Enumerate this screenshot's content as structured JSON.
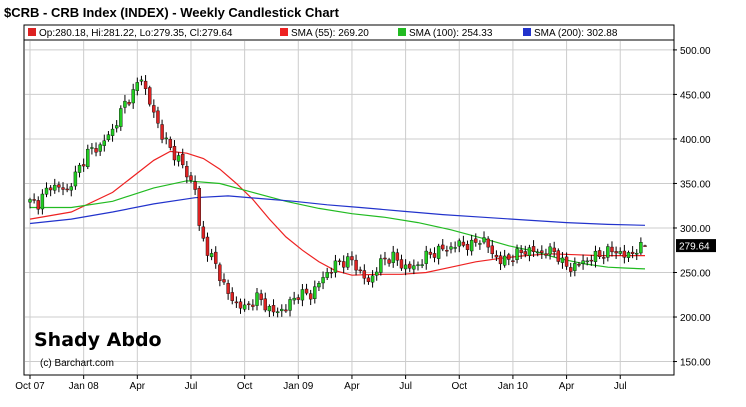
{
  "header": {
    "title": "$CRB - CRB Index (INDEX) - Weekly Candlestick Chart"
  },
  "legend": {
    "ohlc": "Op:280.18, Hi:281.22, Lo:279.35, Cl:279.64",
    "sma55": "SMA (55): 269.20",
    "sma100": "SMA (100): 254.33",
    "sma200": "SMA (200): 302.88"
  },
  "colors": {
    "up": "#22cc22",
    "down": "#dd2222",
    "wick": "#000000",
    "sma55": "#ee2222",
    "sma100": "#22bb22",
    "sma200": "#2233cc",
    "grid": "#cccccc",
    "last_bg": "#000000"
  },
  "watermark": "Shady Abdo",
  "copyright": "(c) Barchart.com",
  "last_value_label": "279.64",
  "chart_data": {
    "type": "candlestick",
    "title": "$CRB - CRB Index (INDEX) - Weekly Candlestick Chart",
    "y_axis": {
      "ticks": [
        150,
        200,
        250,
        300,
        350,
        400,
        450,
        500
      ],
      "tick_labels": [
        "150.00",
        "200.00",
        "250.00",
        "300.00",
        "350.00",
        "400.00",
        "450.00",
        "500.00"
      ],
      "range": [
        136,
        510
      ],
      "position": "right"
    },
    "x_axis": {
      "tick_labels": [
        "Oct 07",
        "Jan 08",
        "Apr",
        "Jul",
        "Oct",
        "Jan 09",
        "Apr",
        "Jul",
        "Oct",
        "Jan 10",
        "Apr",
        "Jul"
      ],
      "start": "2007-10",
      "end": "2010-09"
    },
    "grid": true,
    "legend_placement": "top",
    "close_path": [
      [
        0,
        329
      ],
      [
        2,
        328
      ],
      [
        5,
        348
      ],
      [
        9,
        342
      ],
      [
        12,
        368
      ],
      [
        14,
        385
      ],
      [
        17,
        392
      ],
      [
        20,
        410
      ],
      [
        23,
        440
      ],
      [
        25,
        452
      ],
      [
        27,
        470
      ],
      [
        29,
        440
      ],
      [
        32,
        405
      ],
      [
        34,
        388
      ],
      [
        36,
        378
      ],
      [
        38,
        360
      ],
      [
        40,
        345
      ],
      [
        41,
        300
      ],
      [
        43,
        275
      ],
      [
        45,
        258
      ],
      [
        48,
        225
      ],
      [
        50,
        215
      ],
      [
        52,
        210
      ],
      [
        55,
        222
      ],
      [
        59,
        205
      ],
      [
        62,
        210
      ],
      [
        65,
        226
      ],
      [
        68,
        225
      ],
      [
        70,
        238
      ],
      [
        72,
        250
      ],
      [
        75,
        262
      ],
      [
        78,
        263
      ],
      [
        82,
        238
      ],
      [
        84,
        255
      ],
      [
        86,
        265
      ],
      [
        88,
        268
      ],
      [
        90,
        258
      ],
      [
        93,
        255
      ],
      [
        96,
        268
      ],
      [
        99,
        275
      ],
      [
        102,
        278
      ],
      [
        104,
        282
      ],
      [
        107,
        280
      ],
      [
        109,
        288
      ],
      [
        110,
        285
      ],
      [
        112,
        272
      ],
      [
        114,
        262
      ],
      [
        117,
        268
      ],
      [
        120,
        275
      ],
      [
        123,
        273
      ],
      [
        125,
        272
      ],
      [
        127,
        275
      ],
      [
        129,
        260
      ],
      [
        131,
        255
      ],
      [
        134,
        262
      ],
      [
        137,
        268
      ],
      [
        140,
        273
      ],
      [
        142,
        275
      ],
      [
        144,
        268
      ],
      [
        147,
        275
      ],
      [
        149,
        280
      ]
    ],
    "sma": [
      {
        "period": 55,
        "last": 269.2,
        "points": [
          [
            0,
            310
          ],
          [
            10,
            318
          ],
          [
            20,
            340
          ],
          [
            30,
            376
          ],
          [
            34,
            386
          ],
          [
            38,
            384
          ],
          [
            42,
            378
          ],
          [
            46,
            366
          ],
          [
            50,
            350
          ],
          [
            54,
            332
          ],
          [
            58,
            310
          ],
          [
            62,
            290
          ],
          [
            66,
            275
          ],
          [
            70,
            262
          ],
          [
            74,
            252
          ],
          [
            78,
            247
          ],
          [
            84,
            248
          ],
          [
            90,
            248
          ],
          [
            96,
            250
          ],
          [
            102,
            256
          ],
          [
            108,
            262
          ],
          [
            114,
            266
          ],
          [
            120,
            269
          ],
          [
            126,
            271
          ],
          [
            132,
            270
          ],
          [
            138,
            269
          ],
          [
            144,
            269
          ],
          [
            149,
            269
          ]
        ]
      },
      {
        "period": 100,
        "last": 254.33,
        "points": [
          [
            0,
            323
          ],
          [
            10,
            323
          ],
          [
            20,
            330
          ],
          [
            30,
            345
          ],
          [
            38,
            353
          ],
          [
            46,
            350
          ],
          [
            54,
            340
          ],
          [
            62,
            330
          ],
          [
            70,
            322
          ],
          [
            78,
            316
          ],
          [
            86,
            312
          ],
          [
            94,
            306
          ],
          [
            102,
            298
          ],
          [
            110,
            288
          ],
          [
            116,
            280
          ],
          [
            122,
            274
          ],
          [
            128,
            266
          ],
          [
            134,
            260
          ],
          [
            140,
            256
          ],
          [
            144,
            255
          ],
          [
            149,
            254
          ]
        ]
      },
      {
        "period": 200,
        "last": 302.88,
        "points": [
          [
            0,
            305
          ],
          [
            10,
            310
          ],
          [
            20,
            318
          ],
          [
            30,
            327
          ],
          [
            40,
            334
          ],
          [
            48,
            336
          ],
          [
            56,
            333
          ],
          [
            64,
            330
          ],
          [
            72,
            326
          ],
          [
            80,
            323
          ],
          [
            90,
            319
          ],
          [
            100,
            315
          ],
          [
            110,
            312
          ],
          [
            120,
            309
          ],
          [
            130,
            306
          ],
          [
            140,
            304
          ],
          [
            149,
            303
          ]
        ]
      }
    ],
    "last": {
      "open": 280.18,
      "high": 281.22,
      "low": 279.35,
      "close": 279.64
    }
  }
}
